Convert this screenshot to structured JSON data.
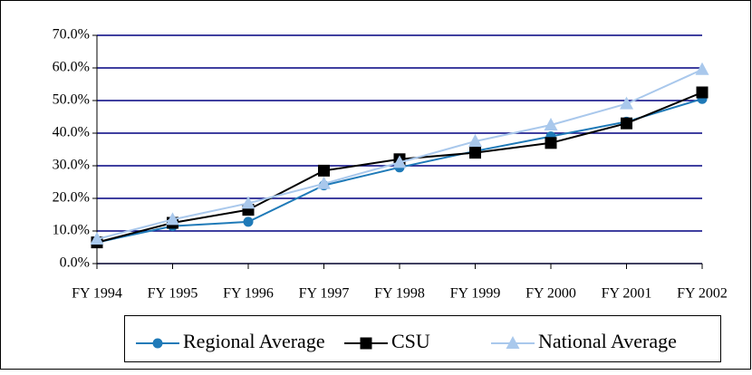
{
  "chart_data": {
    "type": "line",
    "categories": [
      "FY 1994",
      "FY 1995",
      "FY 1996",
      "FY 1997",
      "FY 1998",
      "FY 1999",
      "FY 2000",
      "FY 2001",
      "FY 2002"
    ],
    "series": [
      {
        "name": "Regional Average",
        "color": "#1f7ab8",
        "marker": "circle",
        "values": [
          6.5,
          11.5,
          12.8,
          24,
          29.5,
          34.5,
          39,
          43.5,
          50.5
        ]
      },
      {
        "name": "CSU",
        "color": "#000000",
        "marker": "square",
        "values": [
          6.5,
          12.5,
          16.5,
          28.5,
          32,
          34,
          37,
          43,
          52.5
        ]
      },
      {
        "name": "National Average",
        "color": "#a9c8ec",
        "marker": "triangle",
        "values": [
          7.5,
          13.5,
          18.5,
          24.5,
          31,
          37.5,
          42.5,
          49,
          59.5
        ]
      }
    ],
    "ylim": [
      0,
      70
    ],
    "yticks": [
      {
        "value": 0,
        "label": "0.0%"
      },
      {
        "value": 10,
        "label": "10.0%"
      },
      {
        "value": 20,
        "label": "20.0%"
      },
      {
        "value": 30,
        "label": "30.0%"
      },
      {
        "value": 40,
        "label": "40.0%"
      },
      {
        "value": 50,
        "label": "50.0%"
      },
      {
        "value": 60,
        "label": "60.0%"
      },
      {
        "value": 70,
        "label": "70.0%"
      }
    ],
    "grid": true,
    "grid_color": "#000080",
    "legend": "bottom"
  }
}
